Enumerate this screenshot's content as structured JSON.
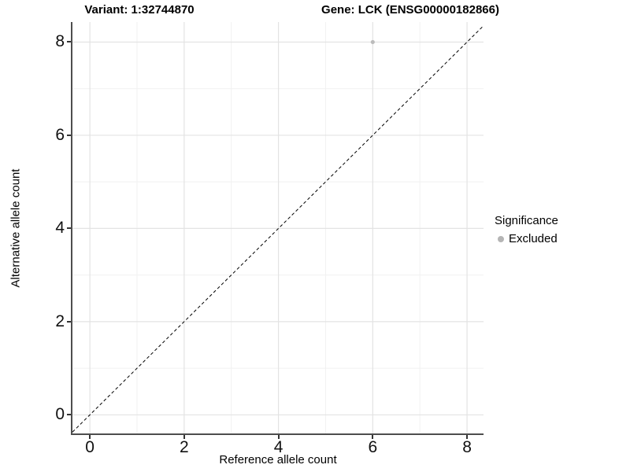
{
  "figure": {
    "title_left": "Variant: 1:32744870",
    "title_right": "Gene: LCK (ENSG00000182866)"
  },
  "chart_data": {
    "type": "scatter",
    "title_left": "Variant: 1:32744870",
    "title_right": "Gene: LCK (ENSG00000182866)",
    "xlabel": "Reference allele count",
    "ylabel": "Alternative allele count",
    "xlim": [
      -0.37,
      8.35
    ],
    "ylim": [
      -0.4,
      8.43
    ],
    "x_ticks": [
      0,
      2,
      4,
      6,
      8
    ],
    "y_ticks": [
      0,
      2,
      4,
      6,
      8
    ],
    "x_minor_gridlines": [
      1,
      3,
      5,
      7
    ],
    "y_minor_gridlines": [
      1,
      3,
      5,
      7
    ],
    "grid": "on",
    "series": [
      {
        "name": "Excluded",
        "color": "#bcbcbc",
        "marker": "circle",
        "points": [
          {
            "x": 6,
            "y": 8
          }
        ]
      }
    ],
    "reference_line": {
      "kind": "identity",
      "equation": "y = x",
      "style": "dashed",
      "color": "#000000"
    },
    "legend": {
      "title": "Significance",
      "position": "right",
      "items": [
        {
          "label": "Excluded",
          "color": "#b5b5b5"
        }
      ]
    }
  },
  "colors": {
    "grid_major": "#e3e3e3",
    "grid_minor": "#f1f1f1",
    "axis_line": "#4e4e4e",
    "tick_mark": "#333333",
    "text": "#000000",
    "point": "#bcbcbc",
    "legend_dot": "#b5b5b5",
    "reference_line": "#000000"
  }
}
